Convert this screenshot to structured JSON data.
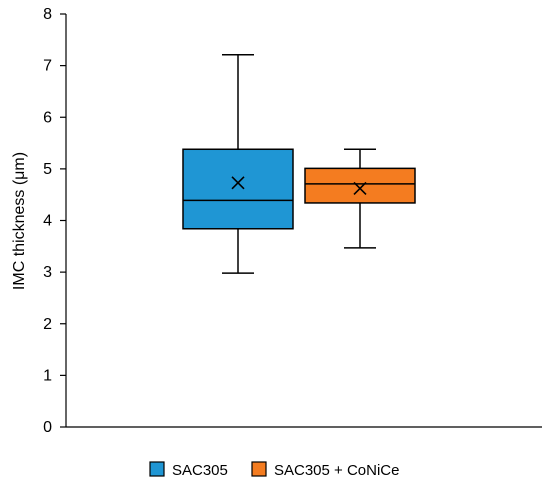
{
  "chart_data": {
    "type": "box",
    "ylabel": "IMC thickness (μm)",
    "xlabel": "",
    "ylim": [
      0,
      8
    ],
    "yticks": [
      0,
      1,
      2,
      3,
      4,
      5,
      6,
      7,
      8
    ],
    "grid": false,
    "legend_position": "bottom",
    "series": [
      {
        "name": "SAC305",
        "color": "#1f96d4",
        "min": 2.98,
        "q1": 3.84,
        "median": 4.39,
        "q3": 5.38,
        "max": 7.21,
        "mean": 4.73
      },
      {
        "name": "SAC305 + CoNiCe",
        "color": "#f47c20",
        "min": 3.47,
        "q1": 4.34,
        "median": 4.71,
        "q3": 5.01,
        "max": 5.38,
        "mean": 4.62
      }
    ]
  }
}
